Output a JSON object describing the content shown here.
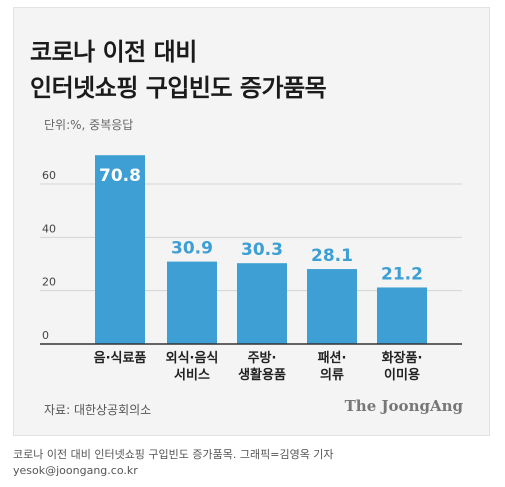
{
  "title_line1": "코로나 이전 대비",
  "title_line2": "인터넷쇼핑 구입빈도 증가품목",
  "unit_note": "단위:%, 중복응답",
  "source": "자료: 대한상공회의소",
  "brand": "The JoongAng",
  "caption": "코로나 이전 대비 인터넷쇼핑 구입빈도 증가품목. 그래픽=김영옥 기자",
  "email": "yesok@joongang.co.kr",
  "colors": {
    "bar": "#3d9fd4",
    "label_in_bar": "#ffffff",
    "label_above": "#3d9fd4",
    "grid": "#d4d4d4",
    "axis": "#333333"
  },
  "chart_data": {
    "type": "bar",
    "categories": [
      [
        "음·식료품"
      ],
      [
        "외식·음식",
        "서비스"
      ],
      [
        "주방·",
        "생활용품"
      ],
      [
        "패션·",
        "의류"
      ],
      [
        "화장품·",
        "이미용"
      ]
    ],
    "values": [
      70.8,
      30.9,
      30.3,
      28.1,
      21.2
    ],
    "value_labels": [
      "70.8",
      "30.9",
      "30.3",
      "28.1",
      "21.2"
    ],
    "yticks": [
      "0",
      "20",
      "40",
      "60"
    ],
    "ytick_values": [
      0,
      20,
      40,
      60
    ],
    "ylim": [
      0,
      73
    ],
    "grid": true
  }
}
